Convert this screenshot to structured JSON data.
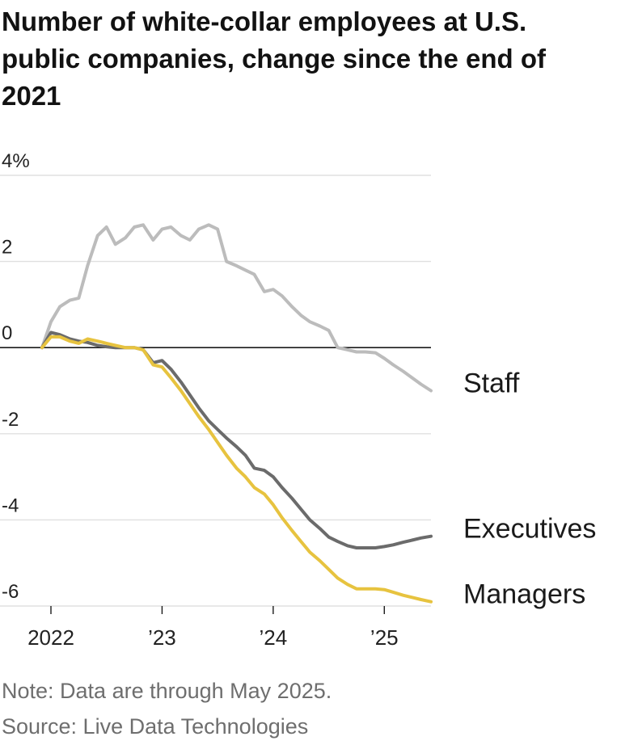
{
  "chart_data": {
    "type": "line",
    "title": "Number of white-collar employees at U.S. public companies, change since the end of 2021",
    "ylabel": "",
    "xlabel": "",
    "unit": "%",
    "ylim": [
      -6,
      4
    ],
    "xlim": [
      2021.92,
      2025.42
    ],
    "y_ticks": [
      {
        "value": 4,
        "label": "4%"
      },
      {
        "value": 2,
        "label": "2"
      },
      {
        "value": 0,
        "label": "0"
      },
      {
        "value": -2,
        "label": "-2"
      },
      {
        "value": -4,
        "label": "-4"
      },
      {
        "value": -6,
        "label": "-6"
      }
    ],
    "x_ticks": [
      {
        "value": 2022,
        "label": "2022"
      },
      {
        "value": 2023,
        "label": "’23"
      },
      {
        "value": 2024,
        "label": "’24"
      },
      {
        "value": 2025,
        "label": "’25"
      }
    ],
    "grid": true,
    "series": [
      {
        "name": "Staff",
        "color": "#bcbcbc",
        "x": [
          2021.92,
          2022.0,
          2022.08,
          2022.17,
          2022.25,
          2022.33,
          2022.42,
          2022.5,
          2022.58,
          2022.67,
          2022.75,
          2022.83,
          2022.92,
          2023.0,
          2023.08,
          2023.17,
          2023.25,
          2023.33,
          2023.42,
          2023.5,
          2023.58,
          2023.67,
          2023.75,
          2023.83,
          2023.92,
          2024.0,
          2024.08,
          2024.17,
          2024.25,
          2024.33,
          2024.42,
          2024.5,
          2024.58,
          2024.67,
          2024.75,
          2024.83,
          2024.92,
          2025.0,
          2025.08,
          2025.17,
          2025.25,
          2025.33,
          2025.42
        ],
        "values": [
          0.0,
          0.6,
          0.95,
          1.1,
          1.15,
          1.9,
          2.6,
          2.8,
          2.4,
          2.55,
          2.8,
          2.85,
          2.5,
          2.75,
          2.8,
          2.6,
          2.5,
          2.75,
          2.85,
          2.75,
          2.0,
          1.9,
          1.8,
          1.7,
          1.3,
          1.35,
          1.2,
          0.95,
          0.75,
          0.6,
          0.5,
          0.4,
          0.0,
          -0.05,
          -0.1,
          -0.1,
          -0.12,
          -0.25,
          -0.4,
          -0.55,
          -0.7,
          -0.85,
          -1.0
        ]
      },
      {
        "name": "Executives",
        "color": "#6b6b6b",
        "x": [
          2021.92,
          2022.0,
          2022.08,
          2022.17,
          2022.25,
          2022.33,
          2022.42,
          2022.5,
          2022.58,
          2022.67,
          2022.75,
          2022.83,
          2022.92,
          2023.0,
          2023.08,
          2023.17,
          2023.25,
          2023.33,
          2023.42,
          2023.5,
          2023.58,
          2023.67,
          2023.75,
          2023.83,
          2023.92,
          2024.0,
          2024.08,
          2024.17,
          2024.25,
          2024.33,
          2024.42,
          2024.5,
          2024.58,
          2024.67,
          2024.75,
          2024.83,
          2024.92,
          2025.0,
          2025.08,
          2025.17,
          2025.25,
          2025.33,
          2025.42
        ],
        "values": [
          0.0,
          0.35,
          0.3,
          0.2,
          0.15,
          0.12,
          0.05,
          0.02,
          0.0,
          0.0,
          0.0,
          -0.05,
          -0.35,
          -0.3,
          -0.5,
          -0.8,
          -1.1,
          -1.4,
          -1.7,
          -1.9,
          -2.1,
          -2.3,
          -2.5,
          -2.8,
          -2.85,
          -3.0,
          -3.25,
          -3.5,
          -3.75,
          -4.0,
          -4.2,
          -4.4,
          -4.5,
          -4.6,
          -4.65,
          -4.65,
          -4.65,
          -4.62,
          -4.58,
          -4.52,
          -4.47,
          -4.42,
          -4.38
        ]
      },
      {
        "name": "Managers",
        "color": "#e7c33f",
        "x": [
          2021.92,
          2022.0,
          2022.08,
          2022.17,
          2022.25,
          2022.33,
          2022.42,
          2022.5,
          2022.58,
          2022.67,
          2022.75,
          2022.83,
          2022.92,
          2023.0,
          2023.08,
          2023.17,
          2023.25,
          2023.33,
          2023.42,
          2023.5,
          2023.58,
          2023.67,
          2023.75,
          2023.83,
          2023.92,
          2024.0,
          2024.08,
          2024.17,
          2024.25,
          2024.33,
          2024.42,
          2024.5,
          2024.58,
          2024.67,
          2024.75,
          2024.83,
          2024.92,
          2025.0,
          2025.08,
          2025.17,
          2025.25,
          2025.33,
          2025.42
        ],
        "values": [
          0.0,
          0.25,
          0.25,
          0.15,
          0.1,
          0.2,
          0.15,
          0.1,
          0.05,
          0.0,
          0.0,
          -0.05,
          -0.4,
          -0.45,
          -0.7,
          -1.0,
          -1.3,
          -1.6,
          -1.9,
          -2.2,
          -2.5,
          -2.8,
          -3.0,
          -3.25,
          -3.4,
          -3.65,
          -3.95,
          -4.25,
          -4.5,
          -4.75,
          -4.95,
          -5.15,
          -5.35,
          -5.5,
          -5.6,
          -5.6,
          -5.6,
          -5.62,
          -5.68,
          -5.75,
          -5.8,
          -5.85,
          -5.9
        ]
      }
    ]
  },
  "header": {
    "title": "Number of white-collar employees at U.S. public companies, change since the end of 2021"
  },
  "footer": {
    "note": "Note: Data are through May 2025.",
    "source": "Source: Live Data Technologies"
  },
  "colors": {
    "grid": "#e0e0e0",
    "zero_line": "#1a1a1a",
    "axis_text": "#222222",
    "footer_text": "#6e6e6e"
  }
}
